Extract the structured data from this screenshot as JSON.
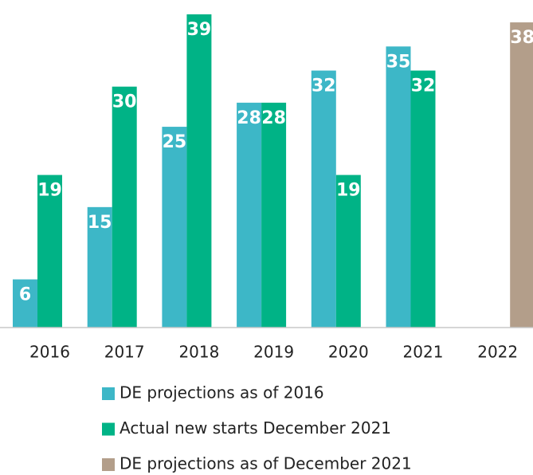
{
  "chart_data": {
    "type": "bar",
    "categories": [
      "2016",
      "2017",
      "2018",
      "2019",
      "2020",
      "2021",
      "2022"
    ],
    "series": [
      {
        "name": "DE projections as of 2016",
        "color": "#3db7c7",
        "values": [
          6,
          15,
          25,
          28,
          32,
          35,
          null
        ]
      },
      {
        "name": "Actual new starts December 2021",
        "color": "#00b386",
        "values": [
          19,
          30,
          39,
          28,
          19,
          32,
          null
        ]
      },
      {
        "name": "DE projections as of December 2021",
        "color": "#b39e8a",
        "values": [
          null,
          null,
          null,
          null,
          null,
          null,
          38
        ]
      }
    ]
  }
}
